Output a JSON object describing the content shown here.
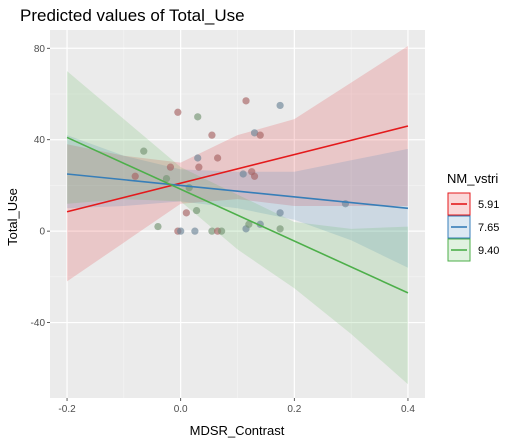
{
  "chart_data": {
    "type": "scatter",
    "title": "Predicted values of Total_Use",
    "xlabel": "MDSR_Contrast",
    "ylabel": "Total_Use",
    "xlim": [
      -0.23,
      0.43
    ],
    "ylim": [
      -73,
      88
    ],
    "x_ticks": [
      -0.2,
      0.0,
      0.2,
      0.4
    ],
    "x_tick_labels": [
      "-0.2",
      "0.0",
      "0.2",
      "0.4"
    ],
    "y_ticks": [
      -40,
      0,
      40,
      80
    ],
    "y_tick_labels": [
      "-40",
      "0",
      "40",
      "80"
    ],
    "grid": true,
    "legend": {
      "title": "NM_vstri",
      "placement": "right",
      "entries": [
        {
          "label": "5.91",
          "color": "#e41a1c"
        },
        {
          "label": "7.65",
          "color": "#377eb8"
        },
        {
          "label": "9.40",
          "color": "#4daf4a"
        }
      ]
    },
    "series": [
      {
        "name": "5.91",
        "color": "#e41a1c",
        "line": [
          [
            -0.2,
            8.5
          ],
          [
            0.4,
            46
          ]
        ],
        "ribbon": [
          [
            -0.2,
            -22,
            38
          ],
          [
            -0.1,
            -5,
            33
          ],
          [
            0.0,
            12,
            30
          ],
          [
            0.1,
            14,
            42
          ],
          [
            0.2,
            11,
            49
          ],
          [
            0.3,
            11,
            65
          ],
          [
            0.4,
            11,
            81
          ]
        ]
      },
      {
        "name": "7.65",
        "color": "#377eb8",
        "line": [
          [
            -0.2,
            25
          ],
          [
            0.4,
            10
          ]
        ],
        "ribbon": [
          [
            -0.2,
            10,
            42
          ],
          [
            -0.1,
            11,
            33
          ],
          [
            0.0,
            13,
            27
          ],
          [
            0.1,
            10,
            26
          ],
          [
            0.2,
            5,
            26
          ],
          [
            0.3,
            -4,
            31
          ],
          [
            0.4,
            -16,
            36
          ]
        ]
      },
      {
        "name": "9.40",
        "color": "#4daf4a",
        "line": [
          [
            -0.2,
            41
          ],
          [
            0.4,
            -27
          ]
        ],
        "ribbon": [
          [
            -0.2,
            12,
            70
          ],
          [
            -0.1,
            14,
            49
          ],
          [
            0.0,
            13,
            28
          ],
          [
            0.1,
            -8,
            16
          ],
          [
            0.2,
            -25,
            4
          ],
          [
            0.3,
            -45,
            1
          ],
          [
            0.4,
            -67,
            2
          ]
        ]
      }
    ],
    "points": [
      {
        "x": -0.08,
        "y": 24,
        "g": "5.91"
      },
      {
        "x": -0.065,
        "y": 35,
        "g": "9.40"
      },
      {
        "x": -0.04,
        "y": 2,
        "g": "9.40"
      },
      {
        "x": -0.025,
        "y": 23,
        "g": "9.40"
      },
      {
        "x": -0.018,
        "y": 28,
        "g": "5.91"
      },
      {
        "x": -0.005,
        "y": 52,
        "g": "5.91"
      },
      {
        "x": -0.005,
        "y": 0,
        "g": "5.91"
      },
      {
        "x": 0.0,
        "y": 0,
        "g": "7.65"
      },
      {
        "x": 0.01,
        "y": 8,
        "g": "5.91"
      },
      {
        "x": 0.015,
        "y": 19,
        "g": "9.40"
      },
      {
        "x": 0.025,
        "y": 0,
        "g": "7.65"
      },
      {
        "x": 0.028,
        "y": 9,
        "g": "9.40"
      },
      {
        "x": 0.03,
        "y": 50,
        "g": "9.40"
      },
      {
        "x": 0.03,
        "y": 32,
        "g": "7.65"
      },
      {
        "x": 0.032,
        "y": 28,
        "g": "5.91"
      },
      {
        "x": 0.055,
        "y": 42,
        "g": "5.91"
      },
      {
        "x": 0.055,
        "y": 0,
        "g": "9.40"
      },
      {
        "x": 0.065,
        "y": 32,
        "g": "5.91"
      },
      {
        "x": 0.065,
        "y": 0,
        "g": "5.91"
      },
      {
        "x": 0.072,
        "y": 0,
        "g": "9.40"
      },
      {
        "x": 0.11,
        "y": 25,
        "g": "7.65"
      },
      {
        "x": 0.115,
        "y": 57,
        "g": "5.91"
      },
      {
        "x": 0.115,
        "y": 1,
        "g": "7.65"
      },
      {
        "x": 0.12,
        "y": 3,
        "g": "9.40"
      },
      {
        "x": 0.125,
        "y": 26,
        "g": "5.91"
      },
      {
        "x": 0.13,
        "y": 24,
        "g": "5.91"
      },
      {
        "x": 0.13,
        "y": 43,
        "g": "7.65"
      },
      {
        "x": 0.14,
        "y": 42,
        "g": "5.91"
      },
      {
        "x": 0.14,
        "y": 3,
        "g": "7.65"
      },
      {
        "x": 0.175,
        "y": 55,
        "g": "7.65"
      },
      {
        "x": 0.175,
        "y": 1,
        "g": "9.40"
      },
      {
        "x": 0.175,
        "y": 8,
        "g": "7.65"
      },
      {
        "x": 0.29,
        "y": 12,
        "g": "7.65"
      }
    ]
  }
}
